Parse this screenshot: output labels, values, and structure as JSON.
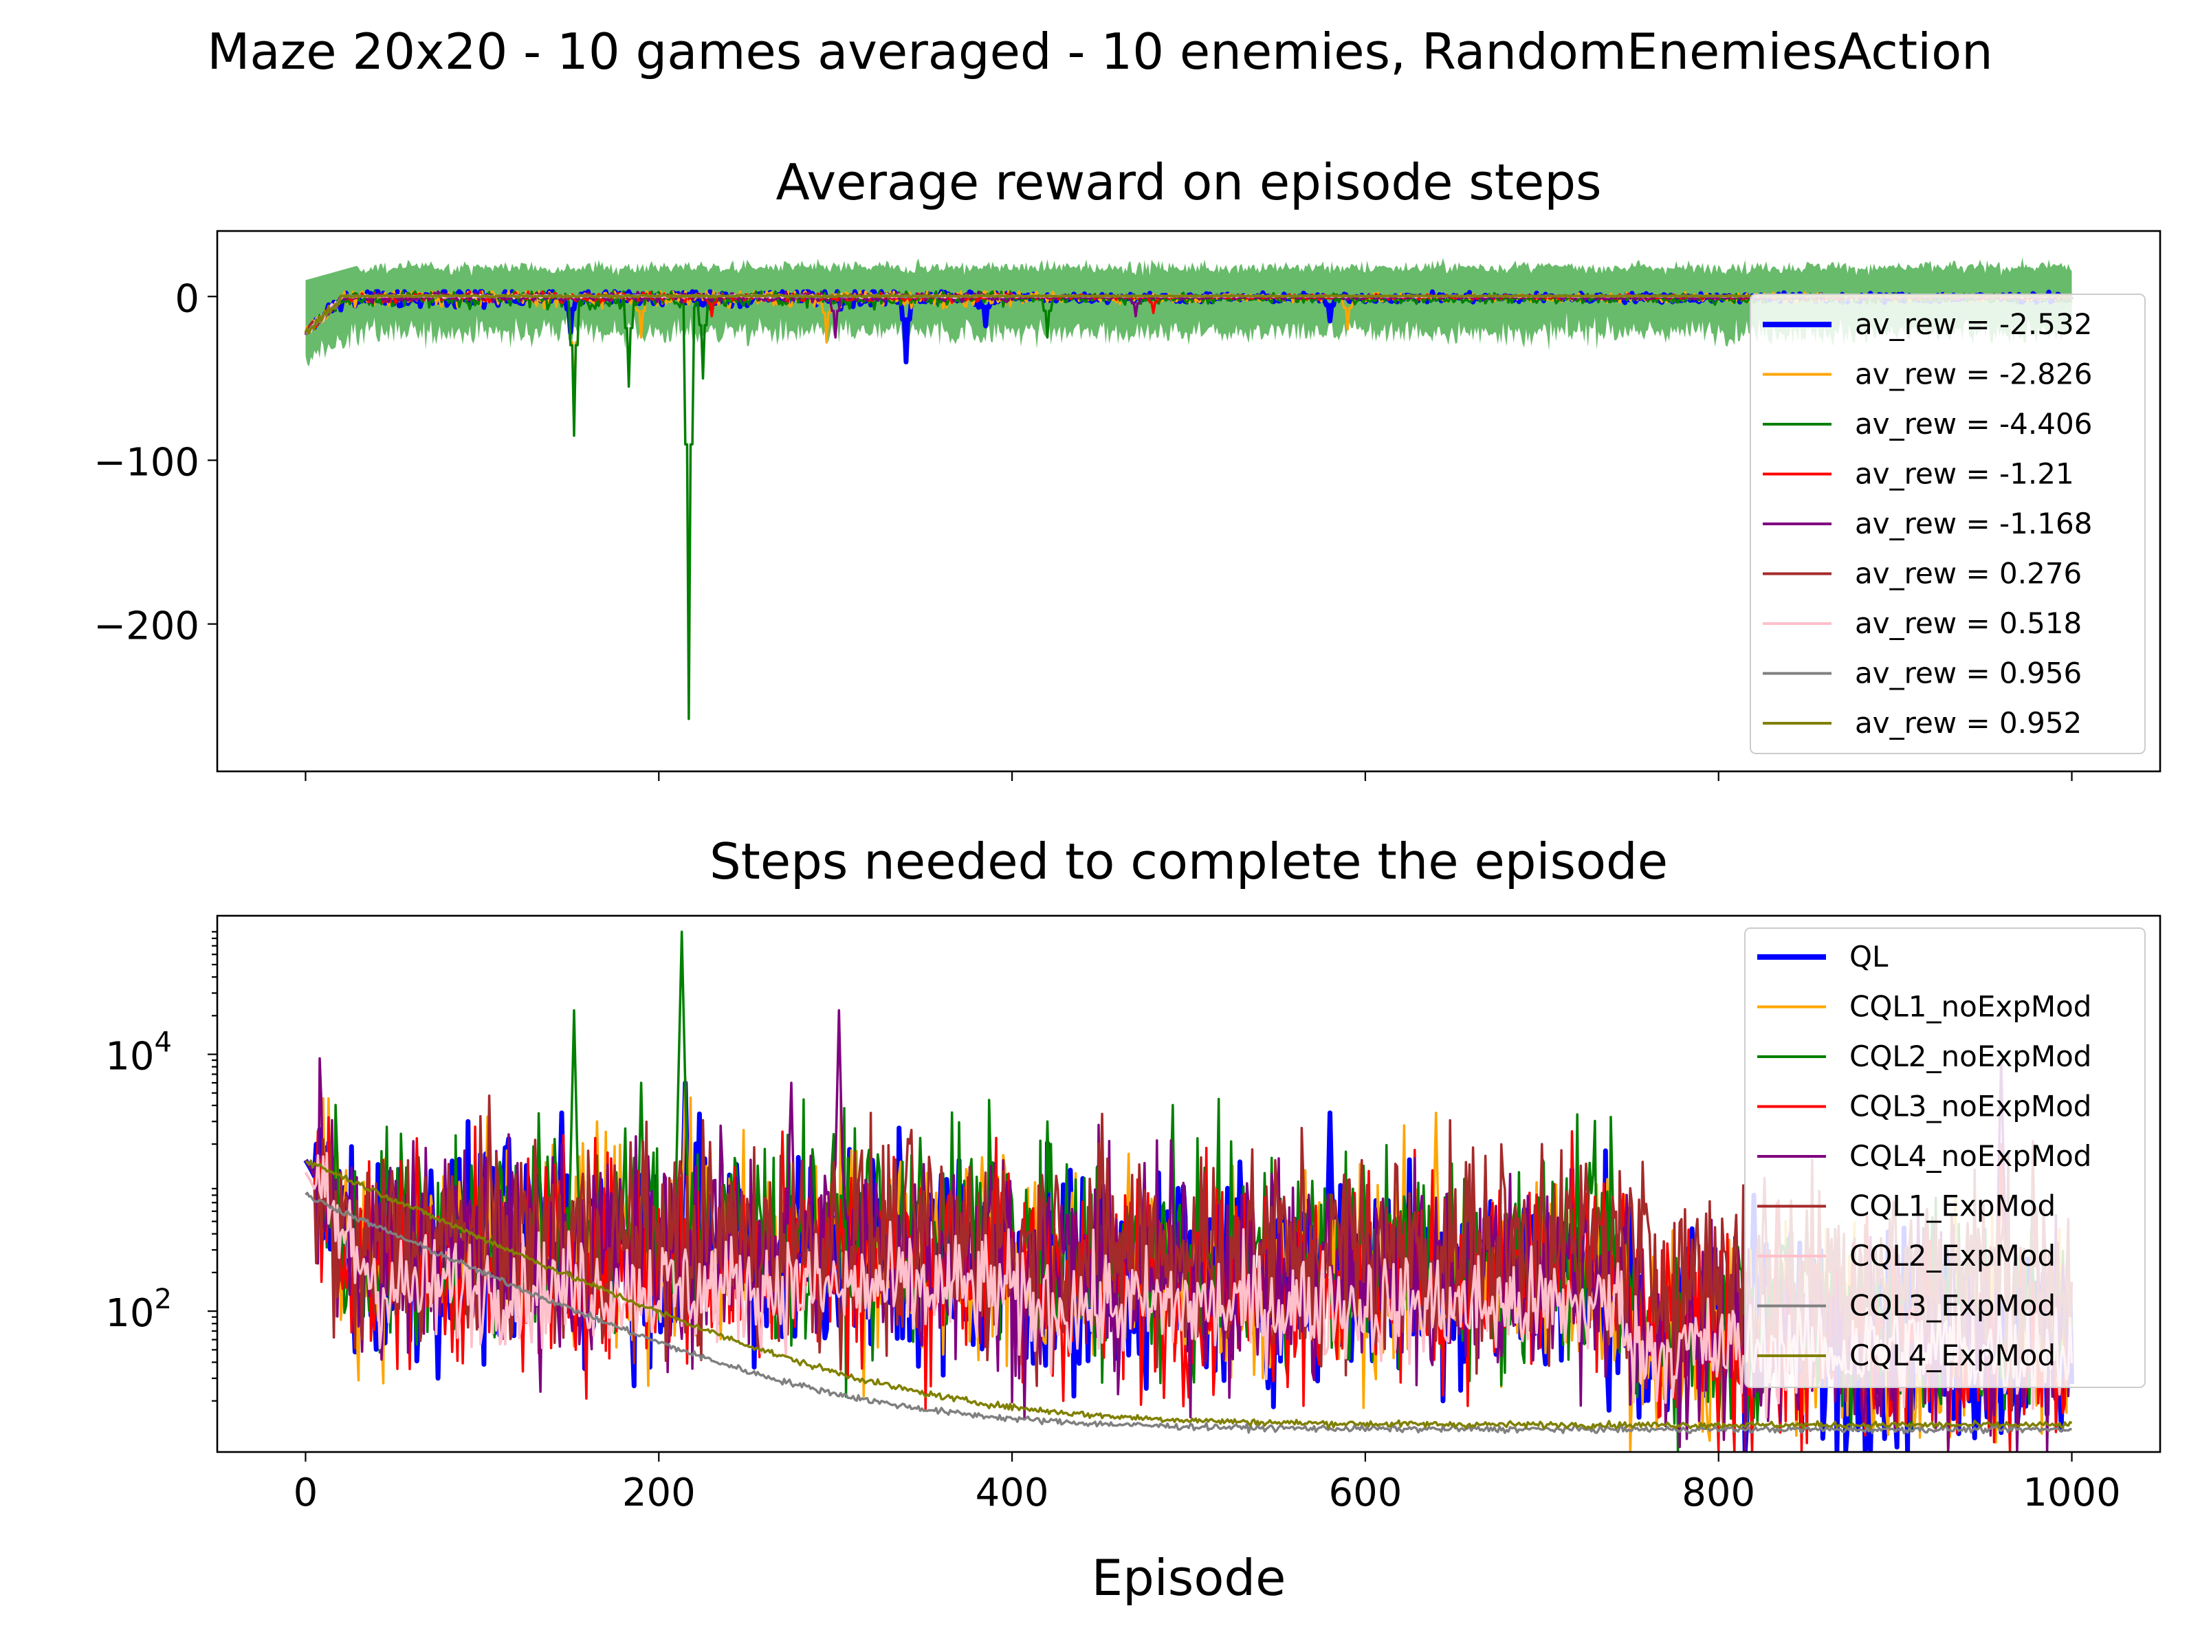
{
  "figure_title": "Maze 20x20 - 10 games averaged - 10 enemies, RandomEnemiesAction",
  "colors": {
    "QL": "#0000ff",
    "CQL1_noExpMod": "#ffa500",
    "CQL2_noExpMod": "#008000",
    "CQL3_noExpMod": "#ff0000",
    "CQL4_noExpMod": "#800080",
    "CQL1_ExpMod": "#a52a2a",
    "CQL2_ExpMod": "#ffc0cb",
    "CQL3_ExpMod": "#808080",
    "CQL4_ExpMod": "#808000",
    "band": "#4caf50"
  },
  "chart_data": [
    {
      "type": "line",
      "title": "Average reward on episode steps",
      "xlabel": "",
      "ylabel": "",
      "xlim": [
        -50,
        1050
      ],
      "ylim": [
        -290,
        40
      ],
      "x_ticks": [
        0,
        200,
        400,
        600,
        800,
        1000
      ],
      "y_ticks": [
        {
          "value": 0,
          "label": "0"
        },
        {
          "value": -100,
          "label": "−100"
        },
        {
          "value": -200,
          "label": "−200"
        }
      ],
      "grid": false,
      "legend_position": "right",
      "shaded_band": {
        "series": "CQL2_noExpMod",
        "description_value": "std band",
        "upper_mean": 18,
        "lower_mean": -22
      },
      "series": [
        {
          "key": "QL",
          "label": "av_rew = -2.532",
          "final_mean": -2.532,
          "spikes": [
            [
              150,
              -22
            ],
            [
              340,
              -40
            ],
            [
              385,
              -18
            ],
            [
              580,
              -15
            ]
          ]
        },
        {
          "key": "CQL1_noExpMod",
          "label": "av_rew = -2.826",
          "final_mean": -2.826,
          "spikes": [
            [
              152,
              -80
            ],
            [
              190,
              -25
            ],
            [
              295,
              -28
            ],
            [
              590,
              -20
            ]
          ]
        },
        {
          "key": "CQL2_noExpMod",
          "label": "av_rew = -4.406",
          "final_mean": -4.406,
          "spikes": [
            [
              152,
              -85
            ],
            [
              183,
              -55
            ],
            [
              217,
              -258
            ],
            [
              225,
              -50
            ],
            [
              420,
              -25
            ]
          ]
        },
        {
          "key": "CQL3_noExpMod",
          "label": "av_rew = -1.21",
          "final_mean": -1.21,
          "spikes": [
            [
              230,
              -12
            ],
            [
              480,
              -10
            ]
          ]
        },
        {
          "key": "CQL4_noExpMod",
          "label": "av_rew = -1.168",
          "final_mean": -1.168,
          "spikes": [
            [
              300,
              -25
            ],
            [
              470,
              -12
            ]
          ]
        },
        {
          "key": "CQL1_ExpMod",
          "label": "av_rew = 0.276",
          "final_mean": 0.276,
          "spikes": []
        },
        {
          "key": "CQL2_ExpMod",
          "label": "av_rew = 0.518",
          "final_mean": 0.518,
          "spikes": []
        },
        {
          "key": "CQL3_ExpMod",
          "label": "av_rew = 0.956",
          "final_mean": 0.956,
          "spikes": []
        },
        {
          "key": "CQL4_ExpMod",
          "label": "av_rew = 0.952",
          "final_mean": 0.952,
          "spikes": []
        }
      ]
    },
    {
      "type": "line",
      "title": "Steps needed to complete the episode",
      "xlabel": "Episode",
      "ylabel": "",
      "yscale": "log",
      "xlim": [
        -50,
        1050
      ],
      "ylim": [
        8,
        120000
      ],
      "x_ticks": [
        0,
        200,
        400,
        600,
        800,
        1000
      ],
      "x_tick_labels": [
        "0",
        "200",
        "400",
        "600",
        "800",
        "1000"
      ],
      "y_ticks": [
        {
          "value": 100,
          "base": "10",
          "exp": "2"
        },
        {
          "value": 10000,
          "base": "10",
          "exp": "4"
        }
      ],
      "grid": false,
      "legend_position": "right",
      "series": [
        {
          "key": "QL",
          "label": "QL",
          "start": 1500,
          "plateau": [
            300,
            200,
            60
          ],
          "peaks": [
            [
              145,
              3500
            ],
            [
              215,
              6000
            ],
            [
              580,
              3500
            ],
            [
              820,
              800
            ]
          ]
        },
        {
          "key": "CQL1_noExpMod",
          "label": "CQL1_noExpMod",
          "start": 1500,
          "plateau": [
            300,
            200,
            60
          ],
          "peaks": [
            [
              165,
              3000
            ],
            [
              215,
              6500
            ],
            [
              640,
              3500
            ]
          ]
        },
        {
          "key": "CQL2_noExpMod",
          "label": "CQL2_noExpMod",
          "start": 1500,
          "plateau": [
            400,
            250,
            80
          ],
          "peaks": [
            [
              152,
              22000
            ],
            [
              213,
              90000
            ],
            [
              190,
              6000
            ],
            [
              420,
              3000
            ]
          ]
        },
        {
          "key": "CQL3_noExpMod",
          "label": "CQL3_noExpMod",
          "start": 1500,
          "plateau": [
            250,
            180,
            60
          ],
          "peaks": [
            [
              270,
              2500
            ],
            [
              960,
              2000
            ]
          ]
        },
        {
          "key": "CQL4_noExpMod",
          "label": "CQL4_noExpMod",
          "start": 1500,
          "plateau": [
            300,
            200,
            60
          ],
          "peaks": [
            [
              302,
              22000
            ],
            [
              275,
              6000
            ],
            [
              960,
              9000
            ]
          ]
        },
        {
          "key": "CQL1_ExpMod",
          "label": "CQL1_ExpMod",
          "start": 1200,
          "plateau": [
            350,
            300,
            200
          ],
          "peaks": [
            [
              700,
              2000
            ]
          ]
        },
        {
          "key": "CQL2_ExpMod",
          "label": "CQL2_ExpMod",
          "start": 1200,
          "plateau": [
            150,
            110,
            50
          ],
          "peaks": [
            [
              300,
              200
            ]
          ]
        },
        {
          "key": "CQL3_ExpMod",
          "label": "CQL3_ExpMod",
          "start": 800,
          "asymptote": 12,
          "decay": 70
        },
        {
          "key": "CQL4_ExpMod",
          "label": "CQL4_ExpMod",
          "start": 1500,
          "asymptote": 13,
          "decay": 70
        }
      ]
    }
  ]
}
